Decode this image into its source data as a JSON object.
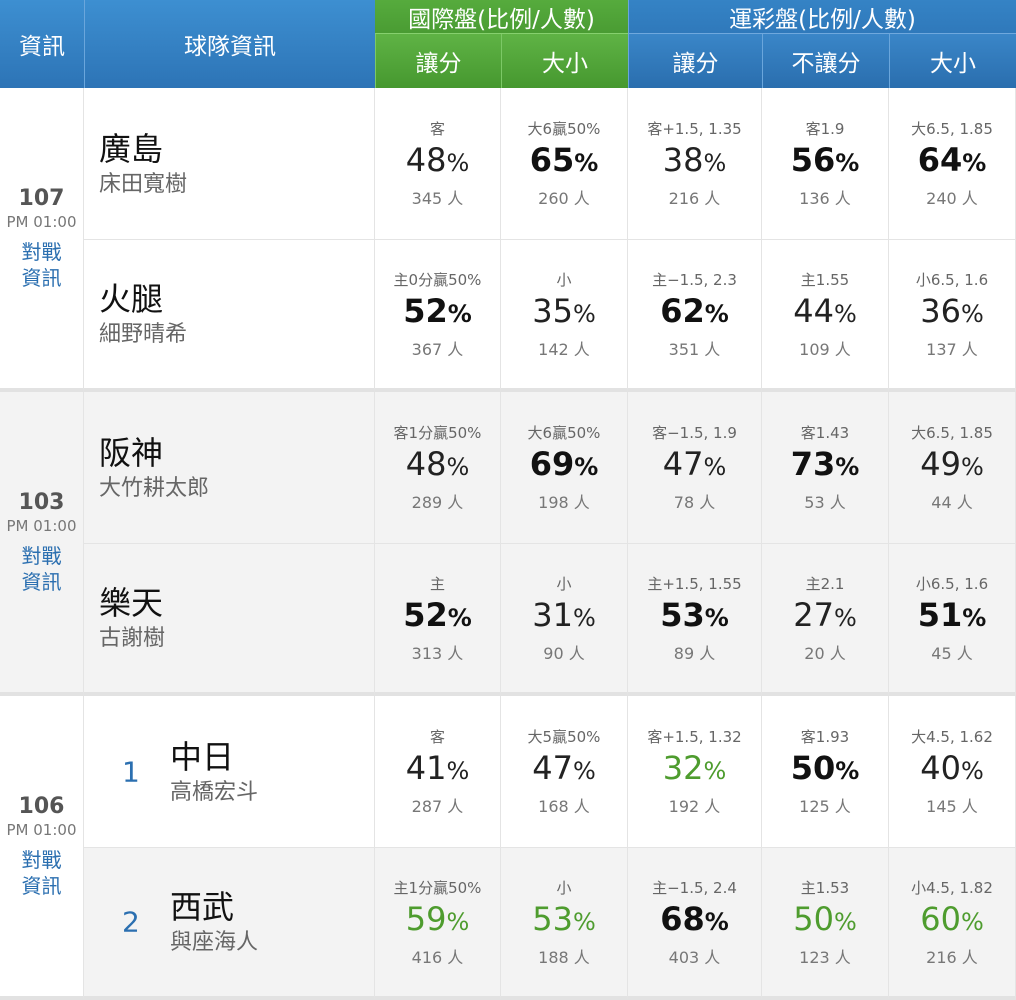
{
  "header": {
    "info": "資訊",
    "team_info": "球隊資訊",
    "intl_group": "國際盤(比例/人數)",
    "sports_group": "運彩盤(比例/人數)",
    "intl_spread": "讓分",
    "intl_total": "大小",
    "sports_spread": "讓分",
    "sports_moneyline": "不讓分",
    "sports_total": "大小"
  },
  "games": [
    {
      "no": "107",
      "time": "PM 01:00",
      "vs_link_1": "對戰",
      "vs_link_2": "資訊",
      "teams": [
        {
          "rank": "",
          "name": "廣島",
          "pitcher": "床田寬樹",
          "cells": [
            {
              "label": "客",
              "pct": "48",
              "people": "345 人"
            },
            {
              "label": "大6贏50%",
              "pct": "65",
              "people": "260 人"
            },
            {
              "label": "客+1.5, 1.35",
              "pct": "38",
              "people": "216 人"
            },
            {
              "label": "客1.9",
              "pct": "56",
              "people": "136 人"
            },
            {
              "label": "大6.5, 1.85",
              "pct": "64",
              "people": "240 人"
            }
          ]
        },
        {
          "rank": "",
          "name": "火腿",
          "pitcher": "細野晴希",
          "cells": [
            {
              "label": "主0分贏50%",
              "pct": "52",
              "people": "367 人"
            },
            {
              "label": "小",
              "pct": "35",
              "people": "142 人"
            },
            {
              "label": "主−1.5, 2.3",
              "pct": "62",
              "people": "351 人"
            },
            {
              "label": "主1.55",
              "pct": "44",
              "people": "109 人"
            },
            {
              "label": "小6.5, 1.6",
              "pct": "36",
              "people": "137 人"
            }
          ]
        }
      ]
    },
    {
      "no": "103",
      "time": "PM 01:00",
      "vs_link_1": "對戰",
      "vs_link_2": "資訊",
      "teams": [
        {
          "rank": "",
          "name": "阪神",
          "pitcher": "大竹耕太郎",
          "cells": [
            {
              "label": "客1分贏50%",
              "pct": "48",
              "people": "289 人"
            },
            {
              "label": "大6贏50%",
              "pct": "69",
              "people": "198 人"
            },
            {
              "label": "客−1.5, 1.9",
              "pct": "47",
              "people": "78 人"
            },
            {
              "label": "客1.43",
              "pct": "73",
              "people": "53 人"
            },
            {
              "label": "大6.5, 1.85",
              "pct": "49",
              "people": "44 人"
            }
          ]
        },
        {
          "rank": "",
          "name": "樂天",
          "pitcher": "古謝樹",
          "cells": [
            {
              "label": "主",
              "pct": "52",
              "people": "313 人"
            },
            {
              "label": "小",
              "pct": "31",
              "people": "90 人"
            },
            {
              "label": "主+1.5, 1.55",
              "pct": "53",
              "people": "89 人"
            },
            {
              "label": "主2.1",
              "pct": "27",
              "people": "20 人"
            },
            {
              "label": "小6.5, 1.6",
              "pct": "51",
              "people": "45 人"
            }
          ]
        }
      ]
    },
    {
      "no": "106",
      "time": "PM 01:00",
      "vs_link_1": "對戰",
      "vs_link_2": "資訊",
      "teams": [
        {
          "rank": "1",
          "name": "中日",
          "pitcher": "高橋宏斗",
          "cells": [
            {
              "label": "客",
              "pct": "41",
              "people": "287 人"
            },
            {
              "label": "大5贏50%",
              "pct": "47",
              "people": "168 人"
            },
            {
              "label": "客+1.5, 1.32",
              "pct": "32",
              "people": "192 人"
            },
            {
              "label": "客1.93",
              "pct": "50",
              "people": "125 人"
            },
            {
              "label": "大4.5, 1.62",
              "pct": "40",
              "people": "145 人"
            }
          ]
        },
        {
          "rank": "2",
          "name": "西武",
          "pitcher": "與座海人",
          "cells": [
            {
              "label": "主1分贏50%",
              "pct": "59",
              "people": "416 人"
            },
            {
              "label": "小",
              "pct": "53",
              "people": "188 人"
            },
            {
              "label": "主−1.5, 2.4",
              "pct": "68",
              "people": "403 人"
            },
            {
              "label": "主1.53",
              "pct": "50",
              "people": "123 人"
            },
            {
              "label": "小4.5, 1.82",
              "pct": "60",
              "people": "216 人"
            }
          ]
        }
      ]
    }
  ],
  "percent_sign": "%",
  "colors": {
    "header_blue": "#2f79bb",
    "header_green": "#4a9c33",
    "highlight_green": "#4e9c2e",
    "link_blue": "#2b6fb0"
  }
}
